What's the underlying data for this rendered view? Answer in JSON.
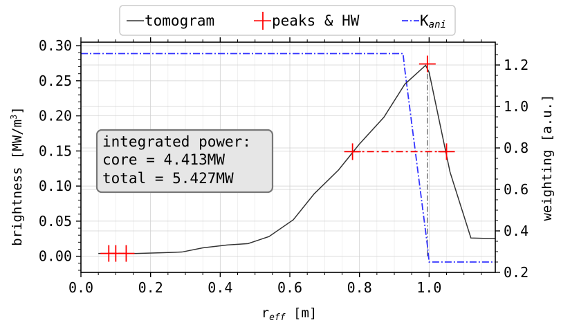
{
  "chart_data": {
    "type": "line",
    "x_axis": {
      "label_main": "r",
      "label_sub": "eff",
      "label_unit": " [m]",
      "range": [
        0.0,
        1.19
      ],
      "ticks": [
        0.0,
        0.2,
        0.4,
        0.6,
        0.8,
        1.0
      ],
      "tick_labels": [
        "0.0",
        "0.2",
        "0.4",
        "0.6",
        "0.8",
        "1.0"
      ]
    },
    "y_axis_left": {
      "label_main": "brightness [MW/m",
      "label_sup": "3",
      "label_end": "]",
      "range": [
        -0.023,
        0.305
      ],
      "ticks": [
        0.0,
        0.05,
        0.1,
        0.15,
        0.2,
        0.25,
        0.3
      ],
      "tick_labels": [
        "0.00",
        "0.05",
        "0.10",
        "0.15",
        "0.20",
        "0.25",
        "0.30"
      ]
    },
    "y_axis_right": {
      "label": "weighting [a.u.]",
      "range": [
        0.2,
        1.31
      ],
      "ticks": [
        0.2,
        0.4,
        0.6,
        0.8,
        1.0,
        1.2
      ],
      "tick_labels": [
        "0.2",
        "0.4",
        "0.6",
        "0.8",
        "1.0",
        "1.2"
      ]
    },
    "grid": true,
    "legend_position": "top-center-outside",
    "series": [
      {
        "name": "tomogram",
        "color": "#333333",
        "style": "solid",
        "x": [
          0.05,
          0.1,
          0.16,
          0.23,
          0.29,
          0.35,
          0.42,
          0.48,
          0.54,
          0.61,
          0.67,
          0.74,
          0.8,
          0.87,
          0.93,
          0.99,
          1.0,
          1.06,
          1.12,
          1.19
        ],
        "y": [
          0.004,
          0.004,
          0.004,
          0.005,
          0.006,
          0.012,
          0.016,
          0.018,
          0.028,
          0.052,
          0.089,
          0.123,
          0.16,
          0.198,
          0.245,
          0.272,
          0.262,
          0.12,
          0.026,
          0.025
        ]
      },
      {
        "name": "peaks & HW",
        "color": "#ff0000",
        "style": "dash-dot with + markers",
        "groups": [
          {
            "x": [
              0.08,
              0.1,
              0.13
            ],
            "y": [
              0.004,
              0.004,
              0.004
            ]
          },
          {
            "x": [
              0.78,
              1.05
            ],
            "y": [
              0.149,
              0.149
            ]
          },
          {
            "x": [
              0.995
            ],
            "y": [
              0.274
            ]
          }
        ]
      },
      {
        "name": "K",
        "name_sub": "ani",
        "color": "#3333ff",
        "style": "dash-dot",
        "axis": "right",
        "x": [
          0.0,
          0.925,
          0.93,
          0.995,
          1.0,
          1.19
        ],
        "y": [
          1.255,
          1.255,
          1.18,
          0.33,
          0.25,
          0.25
        ]
      }
    ],
    "vertical_marker": {
      "x": 0.995,
      "y_from": 0.0,
      "y_to": 0.274,
      "color": "#777777"
    },
    "annotation": {
      "lines": [
        "integrated power:",
        "core = 4.413MW",
        "total = 5.427MW"
      ]
    }
  }
}
